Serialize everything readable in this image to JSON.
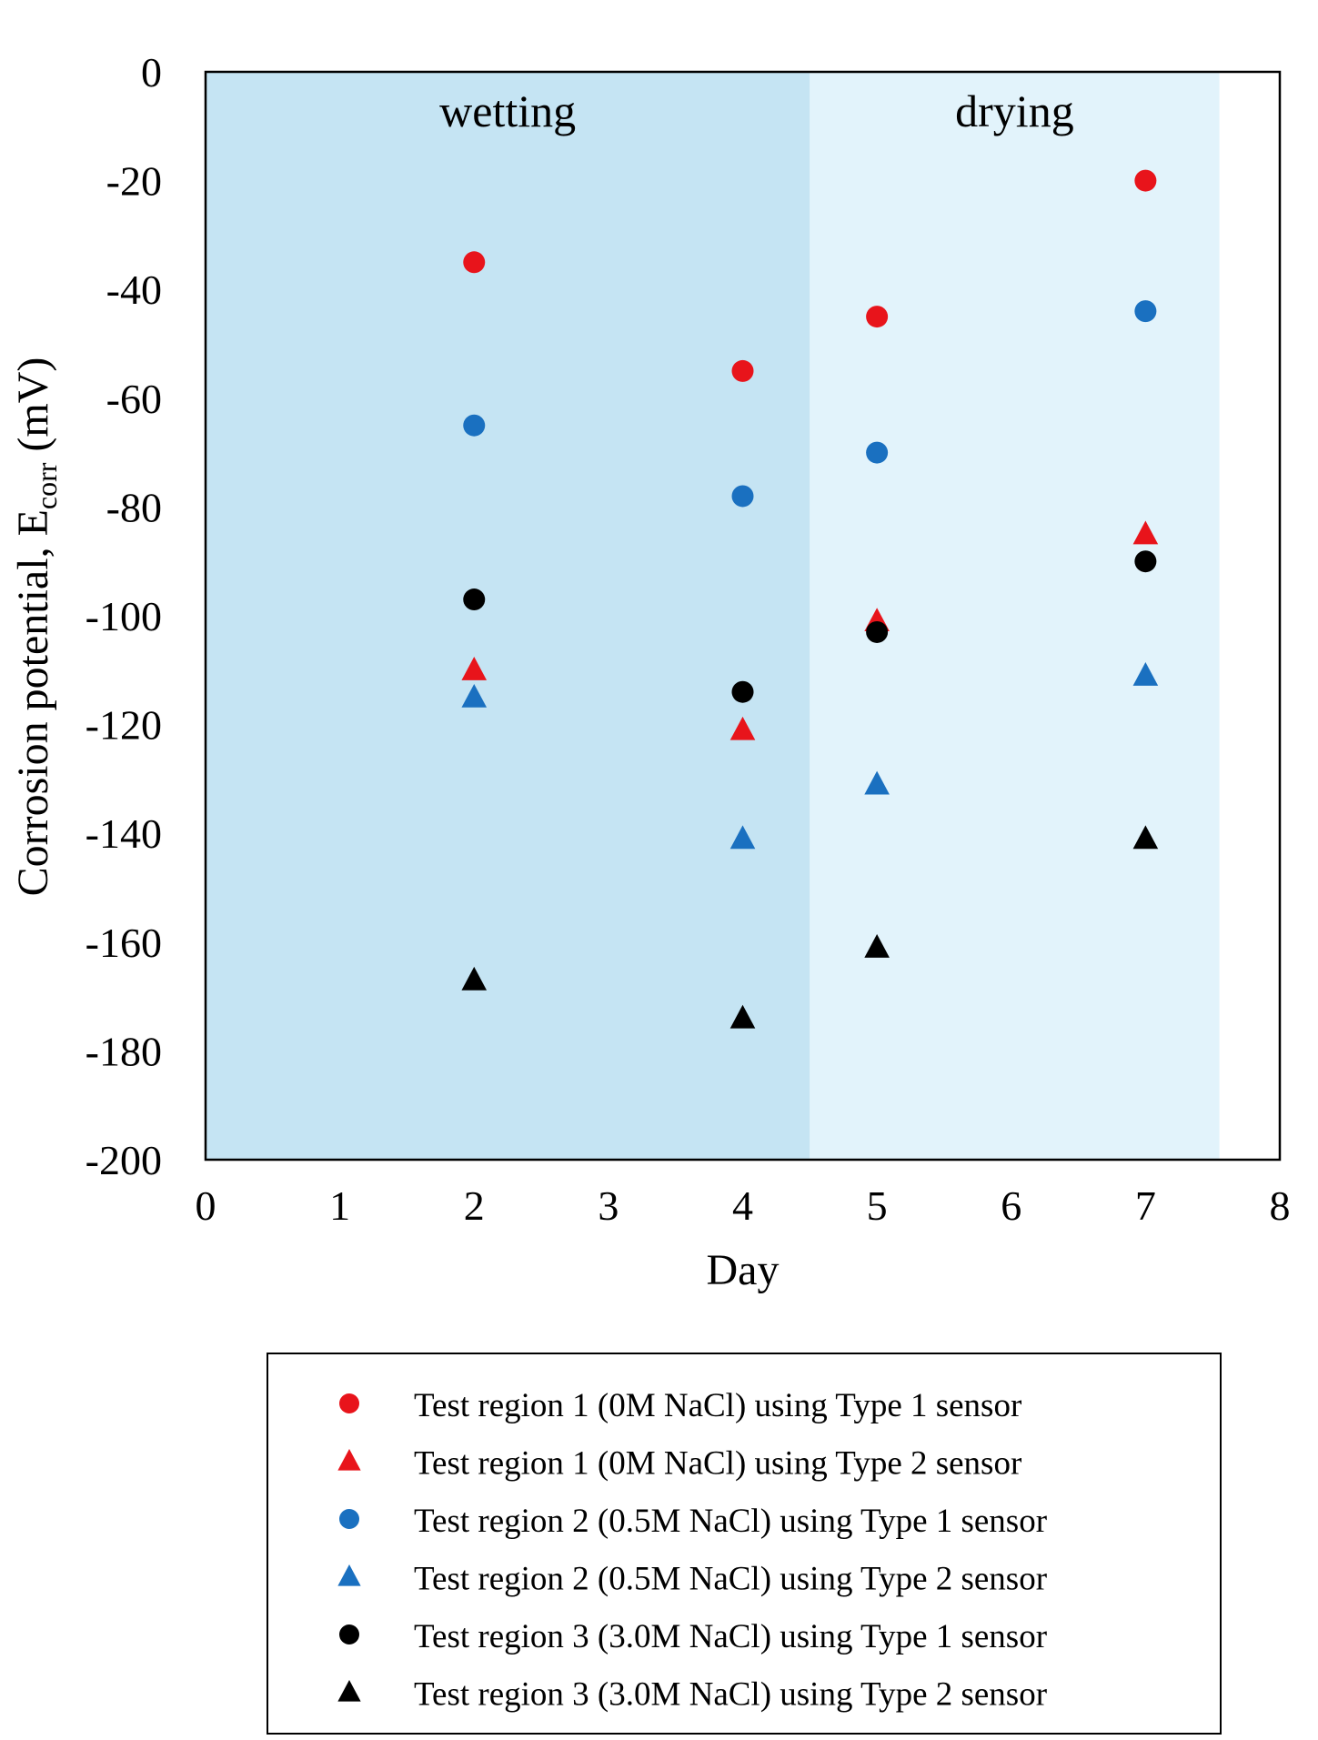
{
  "chart_data": {
    "type": "scatter",
    "title": "",
    "xlabel": "Day",
    "ylabel_main": "Corrosion potential, E",
    "ylabel_sub": "corr",
    "ylabel_unit": " (mV)",
    "xlim": [
      0,
      8
    ],
    "ylim": [
      -200,
      0
    ],
    "x_ticks": [
      0,
      1,
      2,
      3,
      4,
      5,
      6,
      7,
      8
    ],
    "y_ticks": [
      0,
      -20,
      -40,
      -60,
      -80,
      -100,
      -120,
      -140,
      -160,
      -180,
      -200
    ],
    "grid": false,
    "legend_position": "bottom",
    "bands": [
      {
        "label": "wetting",
        "x_start": 0,
        "x_end": 4.5,
        "color": "#c5e4f3"
      },
      {
        "label": "drying",
        "x_start": 4.5,
        "x_end": 7.55,
        "color": "#e2f3fb"
      }
    ],
    "series": [
      {
        "name": "Test region 1 (0M NaCl) using Type 1 sensor",
        "marker": "circle",
        "color": "#e8141b",
        "points": [
          {
            "x": 2,
            "y": -35
          },
          {
            "x": 4,
            "y": -55
          },
          {
            "x": 5,
            "y": -45
          },
          {
            "x": 7,
            "y": -20
          }
        ]
      },
      {
        "name": "Test region 1 (0M NaCl) using Type 2 sensor",
        "marker": "triangle",
        "color": "#e8141b",
        "points": [
          {
            "x": 2,
            "y": -110
          },
          {
            "x": 4,
            "y": -121
          },
          {
            "x": 5,
            "y": -101
          },
          {
            "x": 7,
            "y": -85
          }
        ]
      },
      {
        "name": "Test region 2 (0.5M NaCl) using Type 1 sensor",
        "marker": "circle",
        "color": "#1a70c0",
        "points": [
          {
            "x": 2,
            "y": -65
          },
          {
            "x": 4,
            "y": -78
          },
          {
            "x": 5,
            "y": -70
          },
          {
            "x": 7,
            "y": -44
          }
        ]
      },
      {
        "name": "Test region 2 (0.5M NaCl) using Type 2 sensor",
        "marker": "triangle",
        "color": "#1a70c0",
        "points": [
          {
            "x": 2,
            "y": -115
          },
          {
            "x": 4,
            "y": -141
          },
          {
            "x": 5,
            "y": -131
          },
          {
            "x": 7,
            "y": -111
          }
        ]
      },
      {
        "name": "Test region 3 (3.0M NaCl) using Type 1 sensor",
        "marker": "circle",
        "color": "#000000",
        "points": [
          {
            "x": 2,
            "y": -97
          },
          {
            "x": 4,
            "y": -114
          },
          {
            "x": 5,
            "y": -103
          },
          {
            "x": 7,
            "y": -90
          }
        ]
      },
      {
        "name": "Test region 3 (3.0M NaCl) using Type 2 sensor",
        "marker": "triangle",
        "color": "#000000",
        "points": [
          {
            "x": 2,
            "y": -167
          },
          {
            "x": 4,
            "y": -174
          },
          {
            "x": 5,
            "y": -161
          },
          {
            "x": 7,
            "y": -141
          }
        ]
      }
    ]
  }
}
